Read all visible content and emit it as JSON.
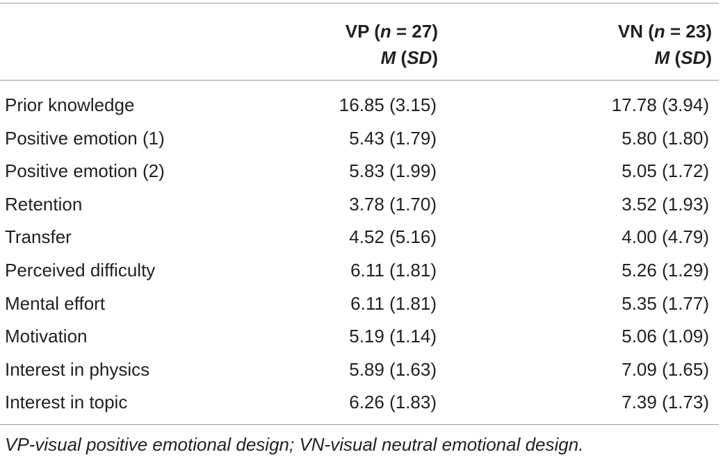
{
  "table": {
    "headers": [
      {
        "group": "VP",
        "n_label": "n",
        "n_value": "= 27",
        "stat_m": "M",
        "stat_sd": "SD"
      },
      {
        "group": "VN",
        "n_label": "n",
        "n_value": "= 23",
        "stat_m": "M",
        "stat_sd": "SD"
      }
    ],
    "rows": [
      {
        "label": "Prior knowledge",
        "vp": "16.85 (3.15)",
        "vn": "17.78 (3.94)"
      },
      {
        "label": "Positive emotion (1)",
        "vp": "5.43 (1.79)",
        "vn": "5.80 (1.80)"
      },
      {
        "label": "Positive emotion (2)",
        "vp": "5.83 (1.99)",
        "vn": "5.05 (1.72)"
      },
      {
        "label": "Retention",
        "vp": "3.78 (1.70)",
        "vn": "3.52 (1.93)"
      },
      {
        "label": "Transfer",
        "vp": "4.52 (5.16)",
        "vn": "4.00 (4.79)"
      },
      {
        "label": "Perceived difficulty",
        "vp": "6.11 (1.81)",
        "vn": "5.26 (1.29)"
      },
      {
        "label": "Mental effort",
        "vp": "6.11 (1.81)",
        "vn": "5.35 (1.77)"
      },
      {
        "label": "Motivation",
        "vp": "5.19 (1.14)",
        "vn": "5.06 (1.09)"
      },
      {
        "label": "Interest in physics",
        "vp": "5.89 (1.63)",
        "vn": "7.09 (1.65)"
      },
      {
        "label": "Interest in topic",
        "vp": "6.26 (1.83)",
        "vn": "7.39 (1.73)"
      }
    ],
    "note": "VP-visual positive emotional design; VN-visual neutral emotional design."
  }
}
